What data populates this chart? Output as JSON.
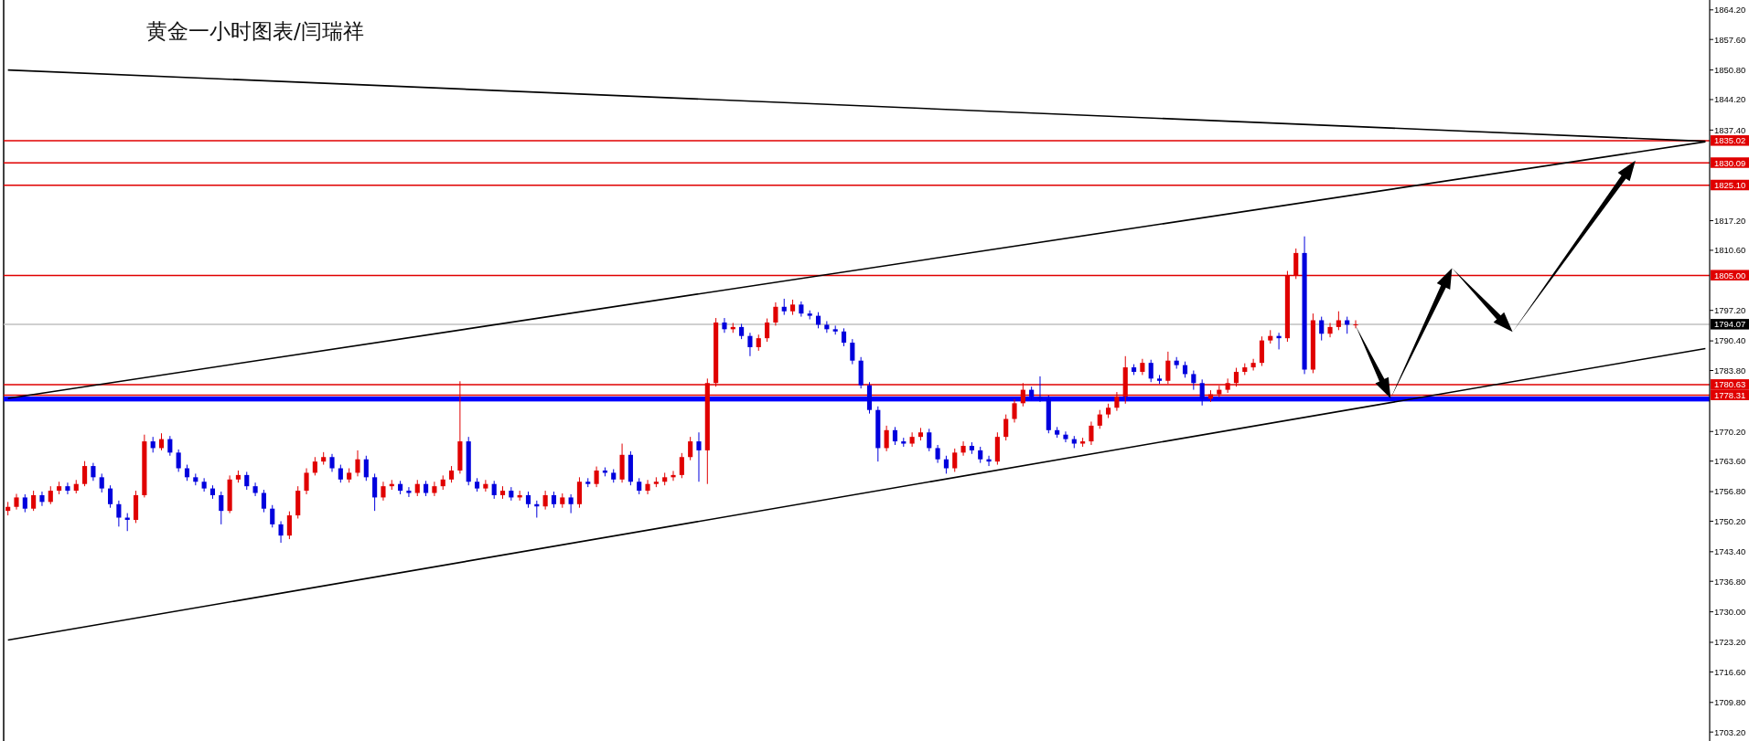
{
  "chart_data": {
    "type": "candlestick",
    "title": "黄金一小时图表/闫瑞祥",
    "categories": [
      null,
      null,
      null,
      null,
      null,
      null,
      null,
      null,
      null,
      null,
      null,
      null,
      null,
      null,
      null,
      null,
      null,
      null,
      null,
      null,
      null,
      null,
      null,
      null,
      null,
      null,
      null,
      null,
      null,
      null,
      null,
      null,
      null,
      null,
      null,
      null,
      null,
      null,
      null,
      null,
      null,
      null,
      null,
      null,
      null,
      null,
      null,
      null,
      null,
      null,
      null,
      null,
      null,
      null,
      null,
      null,
      null,
      null,
      null,
      null,
      null,
      null,
      null,
      null,
      null,
      null,
      null,
      null,
      null,
      null,
      null,
      null,
      null,
      null,
      null,
      null,
      null,
      null,
      null,
      null,
      null,
      null,
      null,
      null,
      null,
      null,
      null,
      null,
      null,
      null,
      null,
      null,
      null,
      null,
      null,
      null,
      null,
      null,
      null,
      null,
      null,
      null,
      null,
      null,
      null,
      null,
      null,
      null,
      null,
      null,
      null,
      null,
      null,
      null,
      null,
      null,
      null,
      null,
      null,
      null,
      null,
      null,
      null,
      null,
      null,
      null,
      null,
      null,
      null,
      null,
      null,
      null,
      null,
      null,
      null,
      null,
      null,
      null,
      null,
      null,
      null,
      null,
      null,
      null,
      null,
      null,
      null,
      null,
      null,
      null,
      null,
      null,
      null,
      null,
      null,
      null,
      null,
      null,
      null,
      null,
      null,
      null,
      null,
      null,
      null,
      null,
      null,
      null,
      null,
      null,
      null,
      null,
      null,
      null,
      null,
      null,
      null,
      null,
      null,
      null,
      null,
      null,
      null,
      null,
      null,
      null,
      null,
      null,
      null,
      null,
      null,
      null,
      null,
      null,
      null,
      null,
      null,
      null,
      null,
      null
    ],
    "ohlc": [
      [
        1752.5,
        1754.5,
        1751.5,
        1753.4
      ],
      [
        1753.4,
        1756.3,
        1752.8,
        1755.5
      ],
      [
        1755.5,
        1756.2,
        1752.2,
        1753.0
      ],
      [
        1753.0,
        1757.0,
        1752.5,
        1756.0
      ],
      [
        1756.0,
        1756.8,
        1753.6,
        1754.5
      ],
      [
        1754.5,
        1758.0,
        1754.0,
        1757.0
      ],
      [
        1757.0,
        1759.0,
        1756.2,
        1758.0
      ],
      [
        1758.0,
        1758.8,
        1756.2,
        1757.0
      ],
      [
        1757.0,
        1759.4,
        1756.4,
        1758.5
      ],
      [
        1758.5,
        1763.6,
        1758.0,
        1762.5
      ],
      [
        1762.5,
        1763.2,
        1759.2,
        1760.0
      ],
      [
        1760.0,
        1760.8,
        1756.6,
        1757.5
      ],
      [
        1757.5,
        1758.2,
        1753.2,
        1754.0
      ],
      [
        1754.0,
        1754.8,
        1749.0,
        1751.0
      ],
      [
        1751.0,
        1752.0,
        1748.0,
        1750.5
      ],
      [
        1750.5,
        1757.0,
        1749.8,
        1756.0
      ],
      [
        1756.0,
        1769.5,
        1755.5,
        1768.0
      ],
      [
        1768.0,
        1769.0,
        1765.5,
        1766.5
      ],
      [
        1766.5,
        1769.8,
        1766.0,
        1768.5
      ],
      [
        1768.5,
        1769.2,
        1764.8,
        1765.5
      ],
      [
        1765.5,
        1766.2,
        1761.2,
        1762.0
      ],
      [
        1762.0,
        1762.8,
        1759.2,
        1760.0
      ],
      [
        1760.0,
        1760.8,
        1758.2,
        1759.0
      ],
      [
        1759.0,
        1759.8,
        1756.8,
        1757.5
      ],
      [
        1757.5,
        1758.2,
        1755.2,
        1756.0
      ],
      [
        1756.0,
        1756.8,
        1749.5,
        1752.5
      ],
      [
        1752.5,
        1760.4,
        1752.0,
        1759.5
      ],
      [
        1759.5,
        1761.5,
        1758.8,
        1760.5
      ],
      [
        1760.5,
        1761.2,
        1757.2,
        1758.0
      ],
      [
        1758.0,
        1758.8,
        1755.8,
        1756.5
      ],
      [
        1756.5,
        1757.2,
        1752.2,
        1753.0
      ],
      [
        1753.0,
        1753.8,
        1748.8,
        1749.5
      ],
      [
        1749.5,
        1750.2,
        1745.4,
        1747.0
      ],
      [
        1747.0,
        1752.4,
        1746.2,
        1751.5
      ],
      [
        1751.5,
        1758.0,
        1750.8,
        1757.0
      ],
      [
        1757.0,
        1762.0,
        1756.2,
        1761.0
      ],
      [
        1761.0,
        1764.5,
        1760.4,
        1763.5
      ],
      [
        1763.5,
        1765.6,
        1762.8,
        1764.5
      ],
      [
        1764.5,
        1765.2,
        1761.2,
        1762.0
      ],
      [
        1762.0,
        1762.8,
        1758.8,
        1759.5
      ],
      [
        1759.5,
        1762.0,
        1758.8,
        1761.0
      ],
      [
        1761.0,
        1766.0,
        1760.2,
        1764.0
      ],
      [
        1764.0,
        1764.8,
        1759.2,
        1760.0
      ],
      [
        1760.0,
        1760.8,
        1752.5,
        1755.5
      ],
      [
        1755.5,
        1759.0,
        1754.8,
        1758.0
      ],
      [
        1758.0,
        1759.4,
        1757.2,
        1758.5
      ],
      [
        1758.5,
        1759.2,
        1756.2,
        1757.0
      ],
      [
        1757.0,
        1757.8,
        1755.6,
        1756.5
      ],
      [
        1756.5,
        1759.4,
        1755.8,
        1758.5
      ],
      [
        1758.5,
        1759.2,
        1755.8,
        1756.5
      ],
      [
        1756.5,
        1759.0,
        1755.8,
        1758.0
      ],
      [
        1758.0,
        1760.4,
        1757.2,
        1759.5
      ],
      [
        1759.5,
        1762.5,
        1758.8,
        1761.5
      ],
      [
        1761.5,
        1781.4,
        1760.8,
        1768.0
      ],
      [
        1768.0,
        1769.0,
        1758.2,
        1759.0
      ],
      [
        1759.0,
        1759.8,
        1756.8,
        1757.5
      ],
      [
        1757.5,
        1759.4,
        1756.8,
        1758.5
      ],
      [
        1758.5,
        1759.2,
        1755.2,
        1756.0
      ],
      [
        1756.0,
        1758.0,
        1755.2,
        1757.0
      ],
      [
        1757.0,
        1757.8,
        1754.8,
        1755.5
      ],
      [
        1755.5,
        1757.0,
        1754.8,
        1756.0
      ],
      [
        1756.0,
        1756.8,
        1753.2,
        1754.0
      ],
      [
        1754.0,
        1754.8,
        1751.0,
        1753.5
      ],
      [
        1753.5,
        1757.0,
        1752.8,
        1756.0
      ],
      [
        1756.0,
        1756.8,
        1753.2,
        1754.0
      ],
      [
        1754.0,
        1756.4,
        1753.2,
        1755.5
      ],
      [
        1755.5,
        1756.2,
        1752.0,
        1754.0
      ],
      [
        1754.0,
        1760.0,
        1753.2,
        1759.0
      ],
      [
        1759.0,
        1759.8,
        1757.8,
        1758.5
      ],
      [
        1758.5,
        1762.4,
        1757.8,
        1761.5
      ],
      [
        1761.5,
        1762.2,
        1760.2,
        1761.0
      ],
      [
        1761.0,
        1761.8,
        1758.8,
        1759.5
      ],
      [
        1759.5,
        1767.5,
        1758.8,
        1765.0
      ],
      [
        1765.0,
        1765.8,
        1758.2,
        1759.0
      ],
      [
        1759.0,
        1759.8,
        1756.2,
        1757.0
      ],
      [
        1757.0,
        1759.4,
        1756.2,
        1758.5
      ],
      [
        1758.5,
        1760.0,
        1757.8,
        1759.0
      ],
      [
        1759.0,
        1761.0,
        1758.2,
        1760.0
      ],
      [
        1760.0,
        1761.4,
        1759.2,
        1760.5
      ],
      [
        1760.5,
        1765.4,
        1759.8,
        1764.5
      ],
      [
        1764.5,
        1769.0,
        1763.8,
        1768.0
      ],
      [
        1768.0,
        1770.0,
        1759.0,
        1766.0
      ],
      [
        1766.0,
        1782.0,
        1758.5,
        1781.0
      ],
      [
        1781.0,
        1795.5,
        1780.2,
        1794.5
      ],
      [
        1794.5,
        1795.5,
        1792.2,
        1793.0
      ],
      [
        1793.0,
        1794.4,
        1792.2,
        1793.5
      ],
      [
        1793.5,
        1794.2,
        1790.8,
        1791.5
      ],
      [
        1791.5,
        1792.2,
        1787.0,
        1789.0
      ],
      [
        1789.0,
        1791.8,
        1788.2,
        1791.0
      ],
      [
        1791.0,
        1795.4,
        1790.2,
        1794.5
      ],
      [
        1794.5,
        1799.0,
        1793.8,
        1798.0
      ],
      [
        1798.0,
        1799.8,
        1796.2,
        1797.0
      ],
      [
        1797.0,
        1799.6,
        1796.2,
        1798.5
      ],
      [
        1798.5,
        1799.2,
        1795.8,
        1796.5
      ],
      [
        1796.5,
        1797.2,
        1795.2,
        1796.0
      ],
      [
        1796.0,
        1796.8,
        1793.2,
        1794.0
      ],
      [
        1794.0,
        1794.8,
        1792.2,
        1793.0
      ],
      [
        1793.0,
        1793.8,
        1791.8,
        1792.5
      ],
      [
        1792.5,
        1793.2,
        1789.2,
        1790.0
      ],
      [
        1790.0,
        1790.8,
        1785.2,
        1786.0
      ],
      [
        1786.0,
        1786.8,
        1779.8,
        1780.5
      ],
      [
        1780.5,
        1781.2,
        1774.2,
        1775.0
      ],
      [
        1775.0,
        1775.8,
        1763.5,
        1766.5
      ],
      [
        1766.5,
        1771.5,
        1765.8,
        1770.5
      ],
      [
        1770.5,
        1771.2,
        1767.2,
        1768.0
      ],
      [
        1768.0,
        1768.8,
        1766.8,
        1767.5
      ],
      [
        1767.5,
        1770.0,
        1766.8,
        1769.0
      ],
      [
        1769.0,
        1771.0,
        1768.2,
        1770.0
      ],
      [
        1770.0,
        1770.8,
        1765.8,
        1766.5
      ],
      [
        1766.5,
        1767.2,
        1763.2,
        1764.0
      ],
      [
        1764.0,
        1764.8,
        1760.8,
        1762.0
      ],
      [
        1762.0,
        1766.4,
        1761.2,
        1765.5
      ],
      [
        1765.5,
        1768.0,
        1764.8,
        1767.0
      ],
      [
        1767.0,
        1767.8,
        1765.2,
        1766.0
      ],
      [
        1766.0,
        1766.8,
        1763.2,
        1764.0
      ],
      [
        1764.0,
        1764.8,
        1762.5,
        1763.5
      ],
      [
        1763.5,
        1770.0,
        1762.8,
        1769.0
      ],
      [
        1769.0,
        1774.0,
        1768.2,
        1773.0
      ],
      [
        1773.0,
        1777.4,
        1772.2,
        1776.5
      ],
      [
        1776.5,
        1781.0,
        1775.8,
        1779.5
      ],
      [
        1779.5,
        1780.2,
        1777.2,
        1778.0
      ],
      [
        1778.0,
        1782.5,
        1776.8,
        1777.5
      ],
      [
        1777.5,
        1778.2,
        1769.8,
        1770.5
      ],
      [
        1770.5,
        1771.2,
        1768.8,
        1769.5
      ],
      [
        1769.5,
        1770.2,
        1767.8,
        1768.5
      ],
      [
        1768.5,
        1769.2,
        1766.5,
        1767.5
      ],
      [
        1767.5,
        1768.8,
        1766.8,
        1768.0
      ],
      [
        1768.0,
        1772.4,
        1767.2,
        1771.5
      ],
      [
        1771.5,
        1775.0,
        1770.8,
        1774.0
      ],
      [
        1774.0,
        1776.4,
        1773.2,
        1775.5
      ],
      [
        1775.5,
        1779.0,
        1774.8,
        1778.0
      ],
      [
        1778.0,
        1787.0,
        1776.4,
        1784.5
      ],
      [
        1784.5,
        1785.2,
        1782.8,
        1783.5
      ],
      [
        1783.5,
        1786.4,
        1782.8,
        1785.5
      ],
      [
        1785.5,
        1786.2,
        1781.2,
        1782.0
      ],
      [
        1782.0,
        1782.8,
        1780.8,
        1781.5
      ],
      [
        1781.5,
        1788.0,
        1780.8,
        1786.0
      ],
      [
        1786.0,
        1786.8,
        1784.2,
        1785.0
      ],
      [
        1785.0,
        1785.8,
        1782.2,
        1783.0
      ],
      [
        1783.0,
        1783.8,
        1779.5,
        1781.0
      ],
      [
        1781.0,
        1781.8,
        1776.0,
        1777.5
      ],
      [
        1777.5,
        1779.4,
        1776.8,
        1778.5
      ],
      [
        1778.5,
        1780.4,
        1777.8,
        1779.5
      ],
      [
        1779.5,
        1782.0,
        1778.8,
        1781.0
      ],
      [
        1781.0,
        1784.4,
        1780.2,
        1783.5
      ],
      [
        1783.5,
        1785.4,
        1782.8,
        1784.5
      ],
      [
        1784.5,
        1786.4,
        1783.8,
        1785.5
      ],
      [
        1785.5,
        1791.4,
        1784.8,
        1790.5
      ],
      [
        1790.5,
        1792.8,
        1789.8,
        1791.5
      ],
      [
        1791.5,
        1792.2,
        1788.5,
        1791.0
      ],
      [
        1791.0,
        1806.0,
        1790.2,
        1805.0
      ],
      [
        1805.0,
        1811.0,
        1804.2,
        1810.0
      ],
      [
        1810.0,
        1813.7,
        1783.0,
        1784.0
      ],
      [
        1784.0,
        1796.5,
        1783.2,
        1795.0
      ],
      [
        1795.0,
        1795.8,
        1790.5,
        1792.0
      ],
      [
        1792.0,
        1794.4,
        1791.2,
        1793.5
      ],
      [
        1793.5,
        1797.0,
        1792.8,
        1795.0
      ],
      [
        1795.0,
        1795.8,
        1792.0,
        1794.0
      ],
      [
        1794.0,
        1795.0,
        1793.2,
        1794.07
      ],
      null,
      null,
      null,
      null,
      null,
      null,
      null,
      null,
      null,
      null,
      null,
      null,
      null,
      null,
      null,
      null,
      null,
      null,
      null,
      null,
      null,
      null,
      null,
      null,
      null,
      null,
      null,
      null,
      null,
      null,
      null,
      null,
      null,
      null,
      null,
      null,
      null,
      null,
      null,
      null,
      null
    ],
    "series": [
      {
        "type": "line",
        "values": [
          1850.8,
          null,
          null,
          null,
          null,
          null,
          null,
          null,
          null,
          null,
          null,
          null,
          null,
          null,
          null,
          null,
          null,
          null,
          null,
          null,
          null,
          null,
          null,
          null,
          null,
          null,
          null,
          null,
          null,
          null,
          null,
          null,
          null,
          null,
          null,
          null,
          null,
          null,
          null,
          null,
          null,
          null,
          null,
          null,
          null,
          null,
          null,
          null,
          null,
          null,
          null,
          null,
          null,
          null,
          null,
          null,
          null,
          null,
          null,
          null,
          null,
          null,
          null,
          null,
          null,
          null,
          null,
          null,
          null,
          null,
          null,
          null,
          null,
          null,
          null,
          null,
          null,
          null,
          null,
          null,
          null,
          null,
          null,
          null,
          null,
          null,
          null,
          null,
          null,
          null,
          null,
          null,
          null,
          null,
          null,
          null,
          null,
          null,
          null,
          null,
          null,
          null,
          null,
          null,
          null,
          null,
          null,
          null,
          null,
          null,
          null,
          null,
          null,
          null,
          null,
          null,
          null,
          null,
          null,
          null,
          null,
          null,
          null,
          null,
          null,
          null,
          null,
          null,
          null,
          null,
          null,
          null,
          null,
          null,
          null,
          null,
          null,
          null,
          null,
          null,
          null,
          null,
          null,
          null,
          null,
          null,
          null,
          null,
          null,
          null,
          null,
          null,
          null,
          null,
          null,
          null,
          null,
          null,
          null,
          null,
          null,
          null,
          null,
          null,
          null,
          null,
          null,
          null,
          null,
          null,
          null,
          null,
          null,
          null,
          null,
          null,
          null,
          null,
          null,
          null,
          null,
          null,
          null,
          null,
          null,
          null,
          null,
          null,
          null,
          null,
          null,
          null,
          null,
          null,
          null,
          null,
          null,
          null,
          null,
          1834.9
        ],
        "color": "#000000"
      },
      {
        "type": "line",
        "values": [
          1777.6,
          null,
          null,
          null,
          null,
          null,
          null,
          null,
          null,
          null,
          null,
          null,
          null,
          null,
          null,
          null,
          null,
          null,
          null,
          null,
          null,
          null,
          null,
          null,
          null,
          null,
          null,
          null,
          null,
          null,
          null,
          null,
          null,
          null,
          null,
          null,
          null,
          null,
          null,
          null,
          null,
          null,
          null,
          null,
          null,
          null,
          null,
          null,
          null,
          null,
          null,
          null,
          null,
          null,
          null,
          null,
          null,
          null,
          null,
          null,
          null,
          null,
          null,
          null,
          null,
          null,
          null,
          null,
          null,
          null,
          null,
          null,
          null,
          null,
          null,
          null,
          null,
          null,
          null,
          null,
          null,
          null,
          null,
          null,
          null,
          null,
          null,
          null,
          null,
          null,
          null,
          null,
          null,
          null,
          null,
          null,
          null,
          null,
          null,
          null,
          null,
          null,
          null,
          null,
          null,
          null,
          null,
          null,
          null,
          null,
          null,
          null,
          null,
          null,
          null,
          null,
          null,
          null,
          null,
          null,
          null,
          null,
          null,
          null,
          null,
          null,
          null,
          null,
          null,
          null,
          null,
          null,
          null,
          null,
          null,
          null,
          null,
          null,
          null,
          null,
          null,
          null,
          null,
          null,
          null,
          null,
          null,
          null,
          null,
          null,
          null,
          null,
          null,
          null,
          null,
          null,
          null,
          null,
          null,
          null,
          null,
          null,
          null,
          null,
          null,
          null,
          null,
          null,
          null,
          null,
          null,
          null,
          null,
          null,
          null,
          null,
          null,
          null,
          null,
          null,
          null,
          null,
          null,
          null,
          null,
          null,
          null,
          null,
          null,
          null,
          null,
          null,
          null,
          null,
          null,
          null,
          null,
          null,
          null,
          1834.8
        ],
        "color": "#000000"
      },
      {
        "type": "line",
        "values": [
          1723.7,
          null,
          null,
          null,
          null,
          null,
          null,
          null,
          null,
          null,
          null,
          null,
          null,
          null,
          null,
          null,
          null,
          null,
          null,
          null,
          null,
          null,
          null,
          null,
          null,
          null,
          null,
          null,
          null,
          null,
          null,
          null,
          null,
          null,
          null,
          null,
          null,
          null,
          null,
          null,
          null,
          null,
          null,
          null,
          null,
          null,
          null,
          null,
          null,
          null,
          null,
          null,
          null,
          null,
          null,
          null,
          null,
          null,
          null,
          null,
          null,
          null,
          null,
          null,
          null,
          null,
          null,
          null,
          null,
          null,
          null,
          null,
          null,
          null,
          null,
          null,
          null,
          null,
          null,
          null,
          null,
          null,
          null,
          null,
          null,
          null,
          null,
          null,
          null,
          null,
          null,
          null,
          null,
          null,
          null,
          null,
          null,
          null,
          null,
          null,
          null,
          null,
          null,
          null,
          null,
          null,
          null,
          null,
          null,
          null,
          null,
          null,
          null,
          null,
          null,
          null,
          null,
          null,
          null,
          null,
          null,
          null,
          null,
          null,
          null,
          null,
          null,
          null,
          null,
          null,
          null,
          null,
          null,
          null,
          null,
          null,
          null,
          null,
          null,
          null,
          null,
          null,
          null,
          null,
          null,
          null,
          null,
          null,
          null,
          null,
          null,
          null,
          null,
          null,
          null,
          null,
          null,
          null,
          null,
          null,
          null,
          null,
          null,
          null,
          null,
          null,
          null,
          null,
          null,
          null,
          null,
          null,
          null,
          null,
          null,
          null,
          null,
          null,
          null,
          null,
          null,
          null,
          null,
          null,
          null,
          null,
          null,
          null,
          null,
          null,
          null,
          null,
          null,
          null,
          null,
          null,
          null,
          null,
          null,
          1788.7
        ],
        "color": "#000000"
      }
    ],
    "ref_lines": [
      {
        "axis": "y",
        "value": 1835.02,
        "label": "1835.02",
        "color": "#e00000"
      },
      {
        "axis": "y",
        "value": 1830.09,
        "label": "1830.09",
        "color": "#e00000"
      },
      {
        "axis": "y",
        "value": 1825.1,
        "label": "1825.10",
        "color": "#e00000"
      },
      {
        "axis": "y",
        "value": 1805.0,
        "label": "1805.00",
        "color": "#e00000"
      },
      {
        "axis": "y",
        "value": 1794.07,
        "label": "1794.07",
        "color": "#c0c0c0"
      },
      {
        "axis": "y",
        "value": 1780.63,
        "label": "1780.63",
        "color": "#e00000"
      },
      {
        "axis": "y",
        "value": 1778.31,
        "label": "1778.31",
        "color": "#e00000"
      }
    ],
    "bands": [
      {
        "axis": "y",
        "from": 1776.9,
        "to": 1778.0,
        "color": "#0000ff"
      }
    ],
    "ylim": [
      1701.2,
      1866.4
    ],
    "yticks": [
      {
        "value": 1703.2,
        "label": "1703.20"
      },
      {
        "value": 1709.8,
        "label": "1709.80"
      },
      {
        "value": 1716.6,
        "label": "1716.60"
      },
      {
        "value": 1723.2,
        "label": "1723.20"
      },
      {
        "value": 1730,
        "label": "1730.00"
      },
      {
        "value": 1736.8,
        "label": "1736.80"
      },
      {
        "value": 1743.4,
        "label": "1743.40"
      },
      {
        "value": 1750.2,
        "label": "1750.20"
      },
      {
        "value": 1756.8,
        "label": "1756.80"
      },
      {
        "value": 1763.6,
        "label": "1763.60"
      },
      {
        "value": 1770.2,
        "label": "1770.20"
      },
      {
        "value": 1783.8,
        "label": "1783.80"
      },
      {
        "value": 1790.4,
        "label": "1790.40"
      },
      {
        "value": 1797.2,
        "label": "1797.20"
      },
      {
        "value": 1810.6,
        "label": "1810.60"
      },
      {
        "value": 1817.2,
        "label": "1817.20"
      },
      {
        "value": 1837.4,
        "label": "1837.40"
      },
      {
        "value": 1844.2,
        "label": "1844.20"
      },
      {
        "value": 1850.8,
        "label": "1850.80"
      },
      {
        "value": 1857.6,
        "label": "1857.60"
      },
      {
        "value": 1864.2,
        "label": "1864.20"
      }
    ],
    "tick_labels": "y"
  }
}
